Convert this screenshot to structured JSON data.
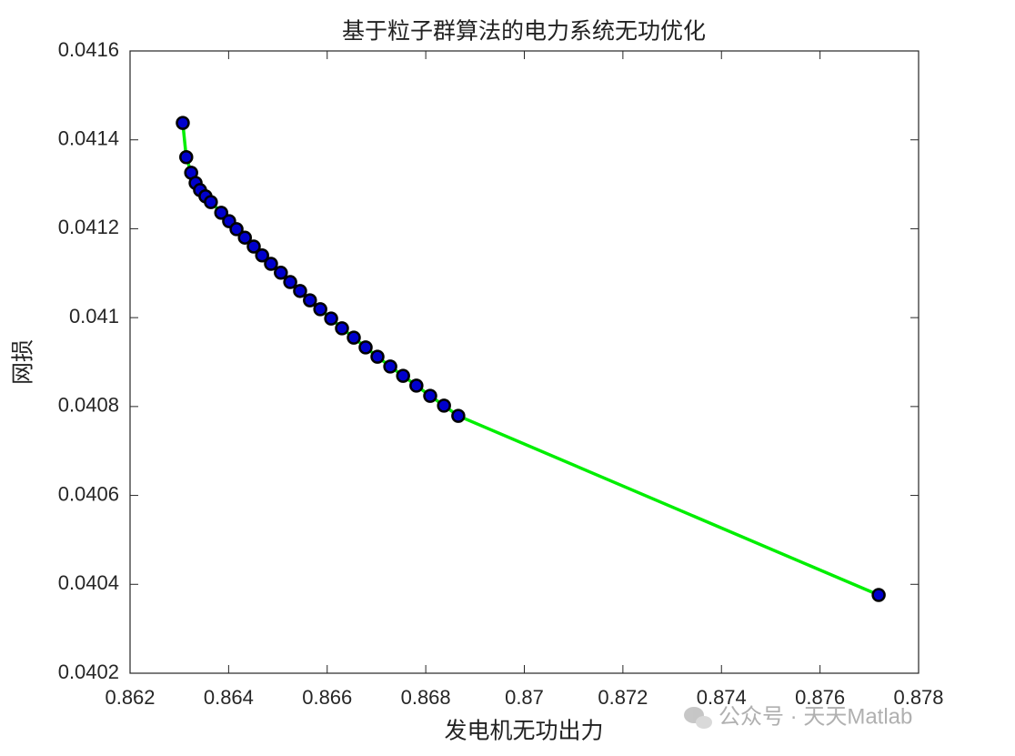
{
  "chart_data": {
    "type": "line",
    "title": "基于粒子群算法的电力系统无功优化",
    "xlabel": "发电机无功出力",
    "ylabel": "网损",
    "watermark": "公众号 · 天天Matlab",
    "x": [
      0.86307,
      0.86314,
      0.86324,
      0.86333,
      0.86342,
      0.86353,
      0.86364,
      0.86385,
      0.86401,
      0.86416,
      0.86433,
      0.86451,
      0.86468,
      0.86486,
      0.86506,
      0.86525,
      0.86545,
      0.86565,
      0.86586,
      0.86608,
      0.8663,
      0.86654,
      0.86678,
      0.86702,
      0.86728,
      0.86754,
      0.86781,
      0.86809,
      0.86837,
      0.86866,
      0.87719
    ],
    "series": [
      {
        "color": "#00ee00",
        "marker_color": "#0000cc",
        "marker_edge": "#000000",
        "values": [
          0.041438,
          0.041361,
          0.041326,
          0.041303,
          0.041287,
          0.041273,
          0.04126,
          0.041236,
          0.041217,
          0.041199,
          0.04118,
          0.04116,
          0.04114,
          0.041121,
          0.041101,
          0.04108,
          0.04106,
          0.041039,
          0.041019,
          0.040998,
          0.040976,
          0.040955,
          0.040933,
          0.040912,
          0.04089,
          0.040869,
          0.040847,
          0.040824,
          0.040802,
          0.040779,
          0.040376
        ]
      }
    ],
    "xlim": [
      0.862,
      0.878
    ],
    "xticks": [
      0.862,
      0.864,
      0.866,
      0.868,
      0.87,
      0.872,
      0.874,
      0.876,
      0.878
    ],
    "ylim": [
      0.0402,
      0.0416
    ],
    "yticks": [
      0.0402,
      0.0404,
      0.0406,
      0.0408,
      0.041,
      0.0412,
      0.0414,
      0.0416
    ],
    "grid": false
  }
}
